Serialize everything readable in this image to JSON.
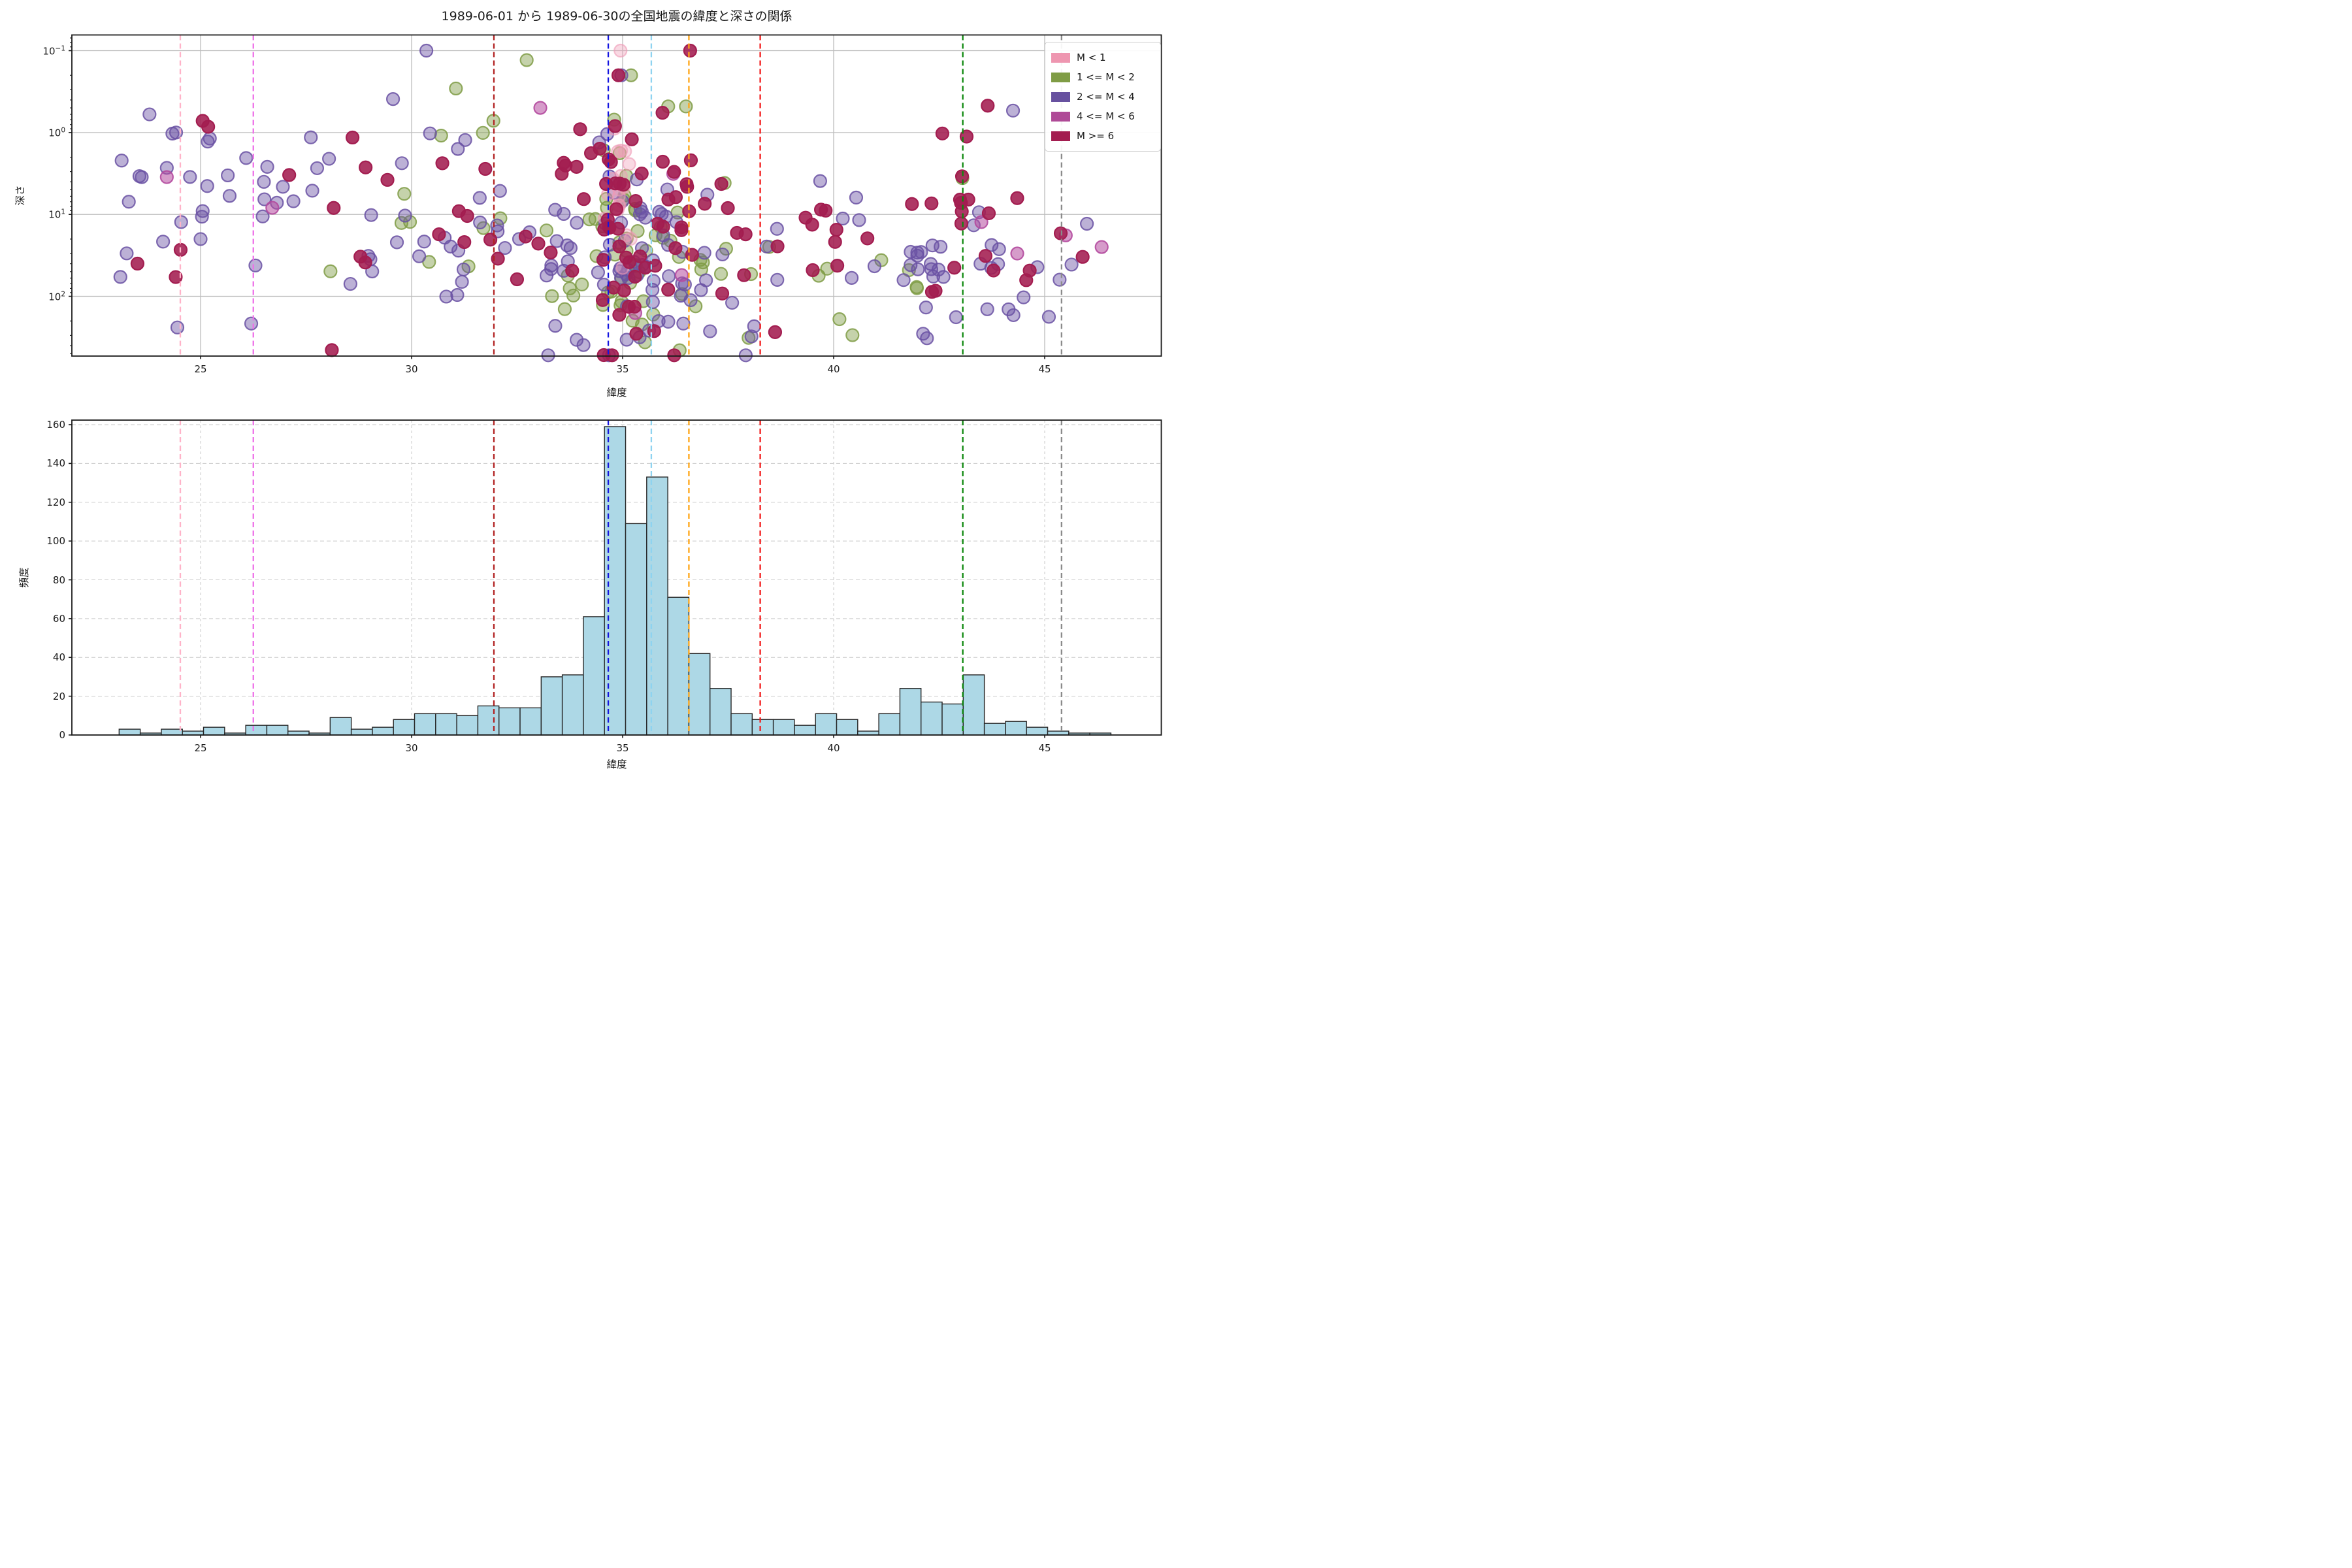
{
  "figure": {
    "title": "1989-06-01 から 1989-06-30の全国地震の緯度と深さの関係"
  },
  "scatter_axes": {
    "xlabel": "緯度",
    "ylabel": "深さ",
    "x_ticks": [
      25,
      30,
      35,
      40,
      45
    ],
    "y_tick_exponents": [
      "−1",
      "0",
      "1",
      "2"
    ]
  },
  "hist_axes": {
    "xlabel": "緯度",
    "ylabel": "頻度",
    "x_ticks": [
      25,
      30,
      35,
      40,
      45
    ],
    "y_ticks": [
      0,
      20,
      40,
      60,
      80,
      100,
      120,
      140,
      160
    ]
  },
  "legend": {
    "entries": [
      {
        "label": "M < 1",
        "color": "#ee96b0"
      },
      {
        "label": "1 <= M < 2",
        "color": "#7f9c45"
      },
      {
        "label": "2 <= M < 4",
        "color": "#67519f"
      },
      {
        "label": "4 <= M < 6",
        "color": "#af4a97"
      },
      {
        "label": "M >= 6",
        "color": "#a31d50"
      }
    ]
  },
  "chart_data": [
    {
      "type": "scatter",
      "title": "1989-06-01 から 1989-06-30の全国地震の緯度と深さの関係",
      "xlabel": "緯度",
      "ylabel": "深さ",
      "x_range": [
        21.95,
        47.79
      ],
      "y_log10_range": [
        -1.19,
        2.73
      ],
      "y_axis": "log, inverted (shallow at top)",
      "grid": "solid, both axes, majors only",
      "marker_radius_px": 9.5,
      "seed": 19890601,
      "classes": {
        "pink": {
          "label": "M < 1",
          "color": "#ef9ab5",
          "fill_opacity": 0.38,
          "stroke_opacity": 0.6
        },
        "olive": {
          "label": "1 <= M < 2",
          "color": "#7f9c45",
          "fill_opacity": 0.45,
          "stroke_opacity": 0.85
        },
        "purple": {
          "label": "2 <= M < 4",
          "color": "#6a51a3",
          "fill_opacity": 0.45,
          "stroke_opacity": 0.85
        },
        "magenta": {
          "label": "4 <= M < 6",
          "color": "#b44a9e",
          "fill_opacity": 0.55,
          "stroke_opacity": 0.9
        },
        "crimson": {
          "label": "M >= 6",
          "color": "#a31d50",
          "fill_opacity": 0.88,
          "stroke_opacity": 1.0
        }
      },
      "draw_order": [
        "olive",
        "purple",
        "pink",
        "magenta",
        "crimson"
      ],
      "clusters": [
        [
          "purple",
          6,
          23.6,
          0.7,
          0.9,
          0.55
        ],
        [
          "purple",
          7,
          25.5,
          0.8,
          0.6,
          0.5
        ],
        [
          "purple",
          5,
          26.9,
          0.6,
          0.9,
          0.6
        ],
        [
          "purple",
          8,
          28.7,
          0.9,
          1.1,
          0.5
        ],
        [
          "purple",
          12,
          30.6,
          0.7,
          1.1,
          0.6
        ],
        [
          "purple",
          10,
          32.2,
          0.7,
          1.4,
          0.5
        ],
        [
          "purple",
          14,
          33.8,
          0.5,
          1.5,
          0.5
        ],
        [
          "purple",
          22,
          34.9,
          0.45,
          1.3,
          0.6
        ],
        [
          "purple",
          18,
          35.8,
          0.5,
          1.4,
          0.55
        ],
        [
          "purple",
          12,
          36.9,
          0.7,
          1.5,
          0.5
        ],
        [
          "purple",
          8,
          38.8,
          1.0,
          1.4,
          0.5
        ],
        [
          "purple",
          5,
          40.5,
          0.6,
          1.6,
          0.4
        ],
        [
          "purple",
          12,
          42.3,
          0.4,
          1.5,
          0.25
        ],
        [
          "purple",
          8,
          43.3,
          0.6,
          1.5,
          0.4
        ],
        [
          "purple",
          5,
          44.6,
          0.6,
          1.6,
          0.45
        ],
        [
          "purple",
          8,
          35.3,
          1.2,
          2.45,
          0.12
        ],
        [
          "purple",
          5,
          42.2,
          0.5,
          2.2,
          0.15
        ],
        [
          "olive",
          5,
          29.3,
          1.0,
          1.2,
          0.5
        ],
        [
          "olive",
          5,
          31.3,
          0.8,
          1.0,
          0.7
        ],
        [
          "olive",
          8,
          33.6,
          0.6,
          1.7,
          0.4
        ],
        [
          "olive",
          16,
          34.8,
          0.35,
          1.1,
          0.6
        ],
        [
          "olive",
          16,
          35.6,
          0.5,
          1.6,
          0.5
        ],
        [
          "olive",
          10,
          36.4,
          0.6,
          1.2,
          0.6
        ],
        [
          "olive",
          5,
          37.6,
          0.8,
          1.7,
          0.4
        ],
        [
          "olive",
          4,
          39.6,
          0.9,
          1.8,
          0.35
        ],
        [
          "olive",
          4,
          41.9,
          0.9,
          1.9,
          0.3
        ],
        [
          "olive",
          5,
          35.1,
          0.9,
          2.35,
          0.15
        ],
        [
          "crimson",
          3,
          23.5,
          0.6,
          1.3,
          0.6
        ],
        [
          "crimson",
          5,
          28.7,
          0.5,
          1.1,
          0.7
        ],
        [
          "crimson",
          5,
          30.6,
          0.8,
          0.9,
          0.7
        ],
        [
          "crimson",
          7,
          32.3,
          0.7,
          1.2,
          0.6
        ],
        [
          "crimson",
          14,
          34.0,
          0.5,
          0.7,
          0.55
        ],
        [
          "crimson",
          20,
          34.9,
          0.4,
          0.9,
          0.65
        ],
        [
          "crimson",
          18,
          35.9,
          0.5,
          0.9,
          0.6
        ],
        [
          "crimson",
          10,
          36.9,
          0.6,
          1.1,
          0.6
        ],
        [
          "crimson",
          6,
          38.5,
          0.8,
          1.4,
          0.5
        ],
        [
          "crimson",
          5,
          40.2,
          0.8,
          1.5,
          0.5
        ],
        [
          "crimson",
          10,
          42.8,
          0.6,
          0.9,
          0.5
        ],
        [
          "crimson",
          8,
          43.6,
          0.5,
          1.4,
          0.55
        ],
        [
          "crimson",
          6,
          35.5,
          1.0,
          2.3,
          0.2
        ],
        [
          "pink",
          14,
          35.02,
          0.12,
          0.75,
          0.5
        ],
        [
          "pink",
          3,
          34.62,
          0.1,
          0.75,
          0.25
        ]
      ],
      "points": [
        [
          30.35,
          0.1,
          "purple"
        ],
        [
          23.79,
          0.6,
          "purple"
        ],
        [
          24.42,
          1.0,
          "purple"
        ],
        [
          25.17,
          1.29,
          "purple"
        ],
        [
          23.13,
          2.2,
          "purple"
        ],
        [
          24.2,
          2.7,
          "purple"
        ],
        [
          23.3,
          7,
          "purple"
        ],
        [
          26.5,
          4,
          "purple"
        ],
        [
          26.95,
          4.6,
          "purple"
        ],
        [
          27.2,
          6.9,
          "purple"
        ],
        [
          25.05,
          9.1,
          "purple"
        ],
        [
          24.54,
          12.4,
          "purple"
        ],
        [
          25.0,
          20,
          "purple"
        ],
        [
          23.1,
          58,
          "purple"
        ],
        [
          24.45,
          240,
          "purple"
        ],
        [
          26.3,
          42,
          "purple"
        ],
        [
          26.2,
          215,
          "purple"
        ],
        [
          29.56,
          0.39,
          "purple"
        ],
        [
          34.97,
          0.2,
          "purple"
        ],
        [
          44.25,
          0.54,
          "purple"
        ],
        [
          44.5,
          103,
          "purple"
        ],
        [
          45.1,
          178,
          "purple"
        ],
        [
          44.26,
          170,
          "purple"
        ],
        [
          46.0,
          13,
          "purple"
        ],
        [
          36.6,
          0.1,
          "crimson"
        ],
        [
          25.05,
          0.72,
          "crimson"
        ],
        [
          25.18,
          0.85,
          "crimson"
        ],
        [
          27.1,
          3.3,
          "crimson"
        ],
        [
          34.9,
          0.2,
          "crimson"
        ],
        [
          28.6,
          1.15,
          "crimson"
        ],
        [
          43.65,
          0.47,
          "crimson"
        ],
        [
          43.15,
          1.12,
          "crimson"
        ],
        [
          45.38,
          17,
          "crimson"
        ],
        [
          45.9,
          33,
          "crimson"
        ],
        [
          35.2,
          0.2,
          "olive"
        ],
        [
          31.05,
          0.29,
          "olive"
        ],
        [
          31.69,
          1.01,
          "olive"
        ],
        [
          30.7,
          1.09,
          "olive"
        ],
        [
          43.05,
          3.6,
          "olive"
        ],
        [
          36.08,
          0.48,
          "olive"
        ],
        [
          36.5,
          0.48,
          "olive"
        ],
        [
          24.2,
          3.5,
          "magenta"
        ],
        [
          26.7,
          8.3,
          "magenta"
        ],
        [
          36.2,
          3.2,
          "magenta"
        ],
        [
          36.4,
          55,
          "magenta"
        ],
        [
          43.5,
          12.4,
          "magenta"
        ],
        [
          45.5,
          18,
          "magenta"
        ],
        [
          46.35,
          25,
          "magenta"
        ],
        [
          33.05,
          0.5,
          "magenta"
        ],
        [
          35.3,
          160,
          "magenta"
        ],
        [
          44.35,
          30,
          "magenta"
        ],
        [
          34.95,
          0.1,
          "pink"
        ],
        [
          35.0,
          45,
          "pink"
        ]
      ],
      "reference_lines": [
        {
          "lat": 24.52,
          "color": "#ffb3c8",
          "name": "vline-pink"
        },
        {
          "lat": 26.25,
          "color": "#ee70e8",
          "name": "vline-violet"
        },
        {
          "lat": 31.95,
          "color": "#b22222",
          "name": "vline-darkred"
        },
        {
          "lat": 34.66,
          "color": "#1414e0",
          "name": "vline-blue"
        },
        {
          "lat": 35.68,
          "color": "#8ed3f0",
          "name": "vline-skyblue"
        },
        {
          "lat": 36.57,
          "color": "#ffa516",
          "name": "vline-orange"
        },
        {
          "lat": 38.26,
          "color": "#f21d1d",
          "name": "vline-red"
        },
        {
          "lat": 43.06,
          "color": "#0c870c",
          "name": "vline-green"
        },
        {
          "lat": 45.4,
          "color": "#8b8b8b",
          "name": "vline-gray"
        }
      ]
    },
    {
      "type": "histogram",
      "xlabel": "緯度",
      "ylabel": "頻度",
      "x_range": [
        21.95,
        47.79
      ],
      "ylim": [
        0,
        163
      ],
      "grid": "dashed, both axes",
      "bar_color": "#add8e6",
      "bar_edge": "#262626",
      "bin_start": 23.07,
      "bin_width": 0.5,
      "counts": [
        3,
        1,
        3,
        2,
        4,
        1,
        5,
        5,
        2,
        1,
        9,
        3,
        4,
        8,
        11,
        11,
        10,
        15,
        14,
        14,
        30,
        31,
        61,
        159,
        109,
        133,
        71,
        42,
        24,
        11,
        8,
        8,
        5,
        11,
        8,
        2,
        11,
        24,
        17,
        16,
        31,
        6,
        7,
        4,
        2,
        1,
        1
      ],
      "reference_lines": "same latitudes and colors as scatter reference_lines"
    }
  ]
}
